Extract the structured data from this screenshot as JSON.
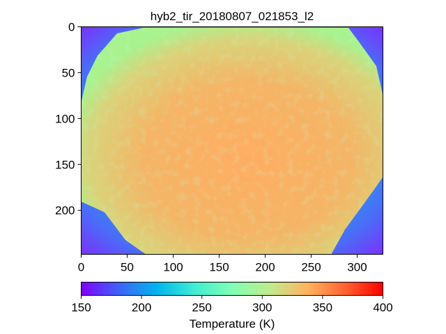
{
  "chart_data": {
    "type": "heatmap",
    "title": "hyb2_tir_20180807_021853_l2",
    "image_extent": {
      "x": [
        0,
        328
      ],
      "y": [
        0,
        248
      ]
    },
    "y_inverted": true,
    "xticks": [
      0,
      50,
      100,
      150,
      200,
      250,
      300
    ],
    "yticks": [
      0,
      50,
      100,
      150,
      200
    ],
    "colormap": "rainbow",
    "colorbar": {
      "label": "Temperature (K)",
      "range": [
        150,
        400
      ],
      "ticks": [
        150,
        200,
        250,
        300,
        350,
        400
      ],
      "orientation": "horizontal"
    },
    "estimated_values": {
      "asteroid_surface_K": 330,
      "asteroid_limb_K": 300,
      "space_background_K": 195,
      "image_corners_K": 160
    }
  },
  "colors": {
    "rainbow_150": "#8000ff",
    "rainbow_200": "#00b5eb",
    "rainbow_250": "#80ffb4",
    "rainbow_300": "#ffb360",
    "rainbow_400": "#ff0000"
  }
}
